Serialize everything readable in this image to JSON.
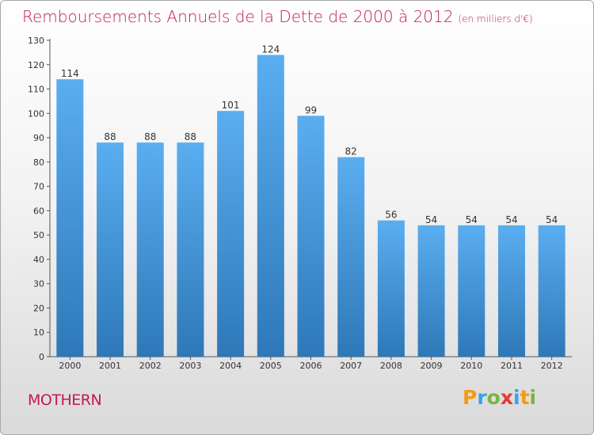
{
  "title": "Remboursements Annuels de la Dette de 2000 à 2012",
  "unit": "(en milliers d'€)",
  "commune": "MOTHERN",
  "logo": {
    "letters": [
      "P",
      "r",
      "o",
      "x",
      "i",
      "t",
      "i"
    ],
    "colors": [
      "#f39c12",
      "#3aa3e3",
      "#7cb342",
      "#e53935",
      "#3aa3e3",
      "#f39c12",
      "#7cb342"
    ]
  },
  "chart_data": {
    "type": "bar",
    "title": "Remboursements Annuels de la Dette de 2000 à 2012",
    "categories": [
      "2000",
      "2001",
      "2002",
      "2003",
      "2004",
      "2005",
      "2006",
      "2007",
      "2008",
      "2009",
      "2010",
      "2011",
      "2012"
    ],
    "values": [
      114,
      88,
      88,
      88,
      101,
      124,
      99,
      82,
      56,
      54,
      54,
      54,
      54
    ],
    "ylim": [
      0,
      130
    ],
    "yticks": [
      0,
      10,
      20,
      30,
      40,
      50,
      60,
      70,
      80,
      90,
      100,
      110,
      120,
      130
    ],
    "grid": false,
    "bar_color_top": "#5aaef0",
    "bar_color_bottom": "#2e78b8"
  }
}
